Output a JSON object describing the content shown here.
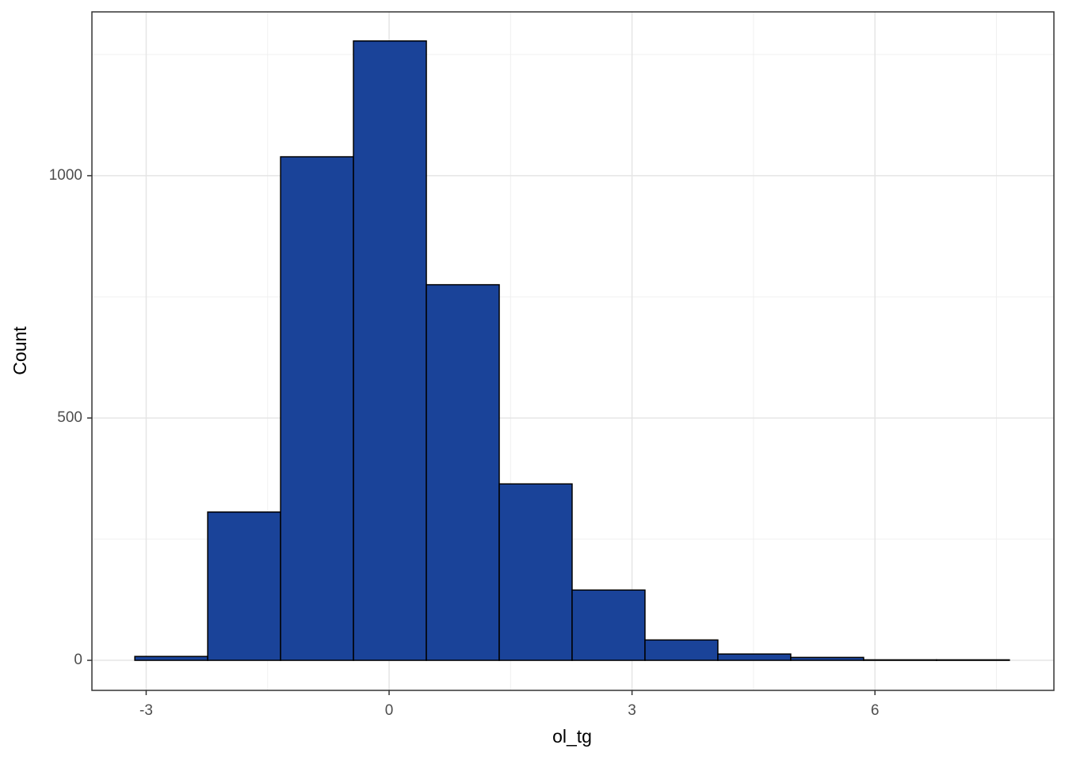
{
  "chart_data": {
    "type": "histogram",
    "x_label": "ol_tg",
    "y_label": "Count",
    "bins": [
      -3.14,
      -2.24,
      -1.34,
      -0.44,
      0.46,
      1.36,
      2.26,
      3.16,
      4.06,
      4.96,
      5.86,
      6.76,
      7.66
    ],
    "values": [
      8,
      306,
      1039,
      1278,
      775,
      364,
      145,
      42,
      13,
      6,
      1,
      1
    ],
    "color": "#1a4399",
    "edge_color": "#000000",
    "xlim": [
      -3.67,
      8.21
    ],
    "ylim": [
      -62,
      1338
    ],
    "xticks": [
      -3,
      0,
      3,
      6
    ],
    "yticks": [
      0,
      500,
      1000
    ],
    "x_minor_grid": [
      -1.5,
      1.5,
      4.5,
      7.5
    ],
    "y_minor_grid": [
      250,
      750,
      1250
    ],
    "grid": true
  }
}
